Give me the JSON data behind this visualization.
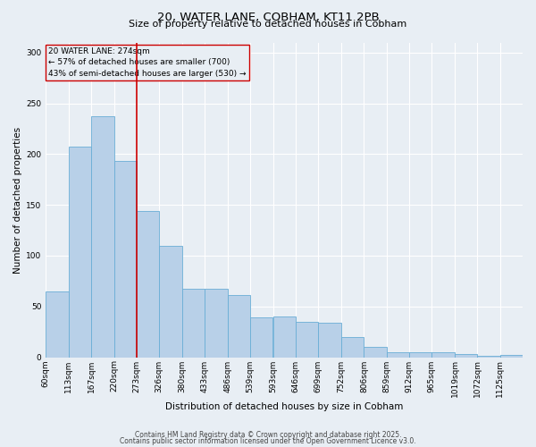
{
  "title1": "20, WATER LANE, COBHAM, KT11 2PB",
  "title2": "Size of property relative to detached houses in Cobham",
  "xlabel": "Distribution of detached houses by size in Cobham",
  "ylabel": "Number of detached properties",
  "annotation_line1": "20 WATER LANE: 274sqm",
  "annotation_line2": "← 57% of detached houses are smaller (700)",
  "annotation_line3": "43% of semi-detached houses are larger (530) →",
  "bin_edges": [
    60,
    113,
    167,
    220,
    273,
    326,
    380,
    433,
    486,
    539,
    593,
    646,
    699,
    752,
    806,
    859,
    912,
    965,
    1019,
    1072,
    1125
  ],
  "bar_values": [
    65,
    207,
    237,
    193,
    144,
    110,
    67,
    67,
    61,
    39,
    40,
    35,
    34,
    20,
    10,
    5,
    5,
    5,
    3,
    1,
    2
  ],
  "bar_color": "#b8d0e8",
  "bar_edge_color": "#6aaed6",
  "vline_color": "#cc0000",
  "vline_x": 273,
  "annotation_box_color": "#cc0000",
  "background_color": "#e8eef4",
  "grid_color": "#ffffff",
  "footer_line1": "Contains HM Land Registry data © Crown copyright and database right 2025.",
  "footer_line2": "Contains public sector information licensed under the Open Government Licence v3.0.",
  "ylim": [
    0,
    310
  ],
  "yticks": [
    0,
    50,
    100,
    150,
    200,
    250,
    300
  ],
  "title1_fontsize": 9.5,
  "title2_fontsize": 8,
  "axis_label_fontsize": 7.5,
  "tick_fontsize": 6.5,
  "annotation_fontsize": 6.5,
  "footer_fontsize": 5.5
}
